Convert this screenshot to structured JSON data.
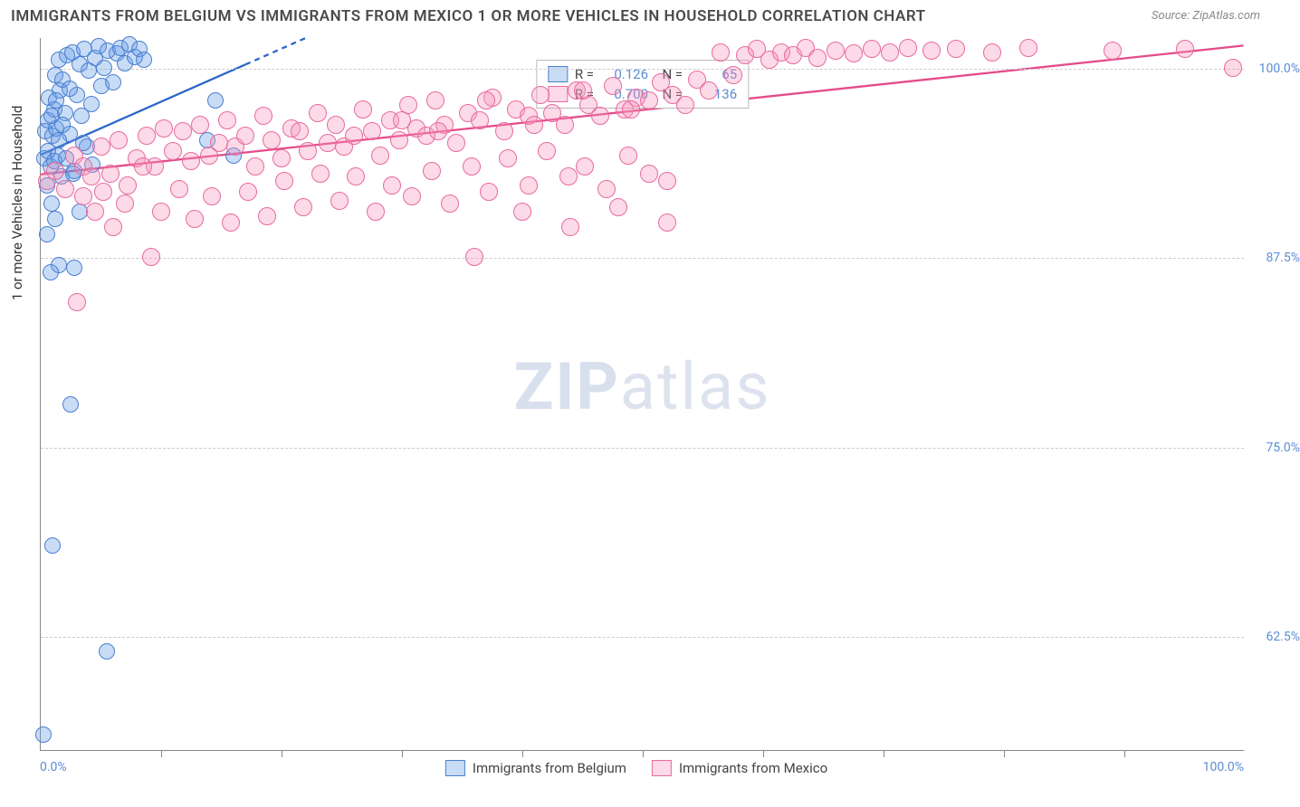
{
  "title": "IMMIGRANTS FROM BELGIUM VS IMMIGRANTS FROM MEXICO 1 OR MORE VEHICLES IN HOUSEHOLD CORRELATION CHART",
  "source": "Source: ZipAtlas.com",
  "watermark": {
    "bold": "ZIP",
    "rest": "atlas"
  },
  "yaxis_title": "1 or more Vehicles in Household",
  "xaxis": {
    "min": 0,
    "max": 100,
    "label_min": "0.0%",
    "label_max": "100.0%",
    "tick_step": 10
  },
  "yaxis": {
    "min": 55,
    "max": 102,
    "ticks": [
      {
        "v": 62.5,
        "label": "62.5%"
      },
      {
        "v": 75.0,
        "label": "75.0%"
      },
      {
        "v": 87.5,
        "label": "87.5%"
      },
      {
        "v": 100.0,
        "label": "100.0%"
      }
    ]
  },
  "series": [
    {
      "name": "Immigrants from Belgium",
      "fill": "rgba(100,155,230,0.35)",
      "stroke": "#4a7fd0",
      "marker_r": 9,
      "R": "0.126",
      "N": "65",
      "trend": {
        "x1": 0,
        "y1": 94.3,
        "x2": 22,
        "y2": 102,
        "dash_after_x": 17,
        "stroke": "#2e66c9",
        "width": 2.3
      },
      "points": [
        [
          0.2,
          56
        ],
        [
          0.3,
          94
        ],
        [
          0.4,
          95.8
        ],
        [
          0.5,
          92.2
        ],
        [
          0.5,
          89
        ],
        [
          0.6,
          96.5
        ],
        [
          0.7,
          98
        ],
        [
          0.8,
          93.5
        ],
        [
          0.9,
          91
        ],
        [
          1.0,
          95.5
        ],
        [
          1.1,
          97.2
        ],
        [
          1.2,
          99.5
        ],
        [
          1.3,
          96
        ],
        [
          1.4,
          94.2
        ],
        [
          1.5,
          100.5
        ],
        [
          1.6,
          98.5
        ],
        [
          1.7,
          92.8
        ],
        [
          1.8,
          99.2
        ],
        [
          2.0,
          97
        ],
        [
          2.2,
          100.8
        ],
        [
          2.4,
          95.6
        ],
        [
          2.6,
          101
        ],
        [
          2.8,
          93.2
        ],
        [
          3.0,
          98.2
        ],
        [
          3.2,
          100.2
        ],
        [
          3.4,
          96.8
        ],
        [
          3.6,
          101.2
        ],
        [
          3.8,
          94.8
        ],
        [
          4.0,
          99.8
        ],
        [
          4.2,
          97.6
        ],
        [
          4.5,
          100.6
        ],
        [
          4.8,
          101.4
        ],
        [
          5.0,
          98.8
        ],
        [
          5.3,
          100
        ],
        [
          5.6,
          101.1
        ],
        [
          6.0,
          99
        ],
        [
          6.3,
          100.9
        ],
        [
          6.6,
          101.3
        ],
        [
          7.0,
          100.3
        ],
        [
          7.4,
          101.5
        ],
        [
          7.8,
          100.7
        ],
        [
          8.2,
          101.2
        ],
        [
          8.6,
          100.5
        ],
        [
          1.0,
          68.5
        ],
        [
          1.5,
          87
        ],
        [
          2.5,
          77.8
        ],
        [
          2.8,
          86.8
        ],
        [
          3.2,
          90.5
        ],
        [
          0.8,
          86.5
        ],
        [
          1.2,
          90
        ],
        [
          5.5,
          61.5
        ],
        [
          0.6,
          94.5
        ],
        [
          0.9,
          96.8
        ],
        [
          1.1,
          93.8
        ],
        [
          1.3,
          97.8
        ],
        [
          1.5,
          95.2
        ],
        [
          1.8,
          96.2
        ],
        [
          2.1,
          94
        ],
        [
          2.4,
          98.6
        ],
        [
          2.7,
          93
        ],
        [
          3.5,
          95
        ],
        [
          4.3,
          93.6
        ],
        [
          13.8,
          95.2
        ],
        [
          14.5,
          97.8
        ],
        [
          16,
          94.2
        ]
      ]
    },
    {
      "name": "Immigrants from Mexico",
      "fill": "rgba(245,150,185,0.35)",
      "stroke": "#e86aa0",
      "marker_r": 10,
      "R": "0.700",
      "N": "136",
      "trend": {
        "x1": 0,
        "y1": 93,
        "x2": 100,
        "y2": 101.5,
        "stroke": "#e54b8a",
        "width": 2.3
      },
      "points": [
        [
          0.5,
          92.5
        ],
        [
          1.2,
          93.2
        ],
        [
          2.0,
          92
        ],
        [
          2.8,
          94.2
        ],
        [
          3.5,
          93.5
        ],
        [
          4.2,
          92.8
        ],
        [
          5.0,
          94.8
        ],
        [
          5.8,
          93
        ],
        [
          6.5,
          95.2
        ],
        [
          7.2,
          92.2
        ],
        [
          8.0,
          94
        ],
        [
          8.8,
          95.5
        ],
        [
          9.5,
          93.5
        ],
        [
          10.2,
          96
        ],
        [
          11.0,
          94.5
        ],
        [
          11.8,
          95.8
        ],
        [
          12.5,
          93.8
        ],
        [
          13.2,
          96.2
        ],
        [
          14.0,
          94.2
        ],
        [
          14.8,
          95
        ],
        [
          15.5,
          96.5
        ],
        [
          16.2,
          94.8
        ],
        [
          17.0,
          95.5
        ],
        [
          17.8,
          93.5
        ],
        [
          18.5,
          96.8
        ],
        [
          19.2,
          95.2
        ],
        [
          20.0,
          94
        ],
        [
          20.8,
          96
        ],
        [
          21.5,
          95.8
        ],
        [
          22.2,
          94.5
        ],
        [
          23.0,
          97
        ],
        [
          23.8,
          95
        ],
        [
          24.5,
          96.2
        ],
        [
          25.2,
          94.8
        ],
        [
          26.0,
          95.5
        ],
        [
          26.8,
          97.2
        ],
        [
          27.5,
          95.8
        ],
        [
          28.2,
          94.2
        ],
        [
          29.0,
          96.5
        ],
        [
          29.8,
          95.2
        ],
        [
          30.5,
          97.5
        ],
        [
          31.2,
          96
        ],
        [
          32.0,
          95.5
        ],
        [
          32.8,
          97.8
        ],
        [
          33.5,
          96.2
        ],
        [
          34.5,
          95
        ],
        [
          35.5,
          97
        ],
        [
          36.5,
          96.5
        ],
        [
          37.5,
          98
        ],
        [
          38.5,
          95.8
        ],
        [
          39.5,
          97.2
        ],
        [
          40.5,
          96.8
        ],
        [
          41.5,
          98.2
        ],
        [
          42.5,
          97
        ],
        [
          43.5,
          96.2
        ],
        [
          44.5,
          98.5
        ],
        [
          45.5,
          97.5
        ],
        [
          46.5,
          96.8
        ],
        [
          47.5,
          98.8
        ],
        [
          48.5,
          97.2
        ],
        [
          49.5,
          98
        ],
        [
          50.5,
          97.8
        ],
        [
          51.5,
          99
        ],
        [
          52.5,
          98.2
        ],
        [
          53.5,
          97.5
        ],
        [
          54.5,
          99.2
        ],
        [
          55.5,
          98.5
        ],
        [
          56.5,
          101
        ],
        [
          57.5,
          99.5
        ],
        [
          58.5,
          100.8
        ],
        [
          59.5,
          101.2
        ],
        [
          60.5,
          100.5
        ],
        [
          61.5,
          101
        ],
        [
          62.5,
          100.8
        ],
        [
          63.5,
          101.3
        ],
        [
          64.5,
          100.6
        ],
        [
          66,
          101.1
        ],
        [
          67.5,
          100.9
        ],
        [
          69,
          101.2
        ],
        [
          70.5,
          101
        ],
        [
          72,
          101.3
        ],
        [
          74,
          101.1
        ],
        [
          76,
          101.2
        ],
        [
          79,
          101
        ],
        [
          82,
          101.3
        ],
        [
          89,
          101.1
        ],
        [
          95,
          101.2
        ],
        [
          99,
          100
        ],
        [
          3,
          84.5
        ],
        [
          3.5,
          91.5
        ],
        [
          4.5,
          90.5
        ],
        [
          5.2,
          91.8
        ],
        [
          6,
          89.5
        ],
        [
          7,
          91
        ],
        [
          8.5,
          93.5
        ],
        [
          9.2,
          87.5
        ],
        [
          10,
          90.5
        ],
        [
          11.5,
          92
        ],
        [
          12.8,
          90
        ],
        [
          14.2,
          91.5
        ],
        [
          15.8,
          89.8
        ],
        [
          17.2,
          91.8
        ],
        [
          18.8,
          90.2
        ],
        [
          20.2,
          92.5
        ],
        [
          21.8,
          90.8
        ],
        [
          23.2,
          93
        ],
        [
          24.8,
          91.2
        ],
        [
          26.2,
          92.8
        ],
        [
          27.8,
          90.5
        ],
        [
          29.2,
          92.2
        ],
        [
          30.8,
          91.5
        ],
        [
          32.5,
          93.2
        ],
        [
          34,
          91
        ],
        [
          35.8,
          93.5
        ],
        [
          37.2,
          91.8
        ],
        [
          38.8,
          94
        ],
        [
          40.5,
          92.2
        ],
        [
          42,
          94.5
        ],
        [
          43.8,
          92.8
        ],
        [
          45.2,
          93.5
        ],
        [
          47,
          92
        ],
        [
          48.8,
          94.2
        ],
        [
          50.5,
          93
        ],
        [
          52,
          92.5
        ],
        [
          36,
          87.5
        ],
        [
          40,
          90.5
        ],
        [
          44,
          89.5
        ],
        [
          48,
          90.8
        ],
        [
          52,
          89.8
        ],
        [
          30,
          96.5
        ],
        [
          33,
          95.8
        ],
        [
          37,
          97.8
        ],
        [
          41,
          96.2
        ],
        [
          45,
          98.5
        ],
        [
          49,
          97.2
        ]
      ]
    }
  ],
  "legend_bottom": [
    {
      "label": "Immigrants from Belgium",
      "series": 0
    },
    {
      "label": "Immigrants from Mexico",
      "series": 1
    }
  ]
}
